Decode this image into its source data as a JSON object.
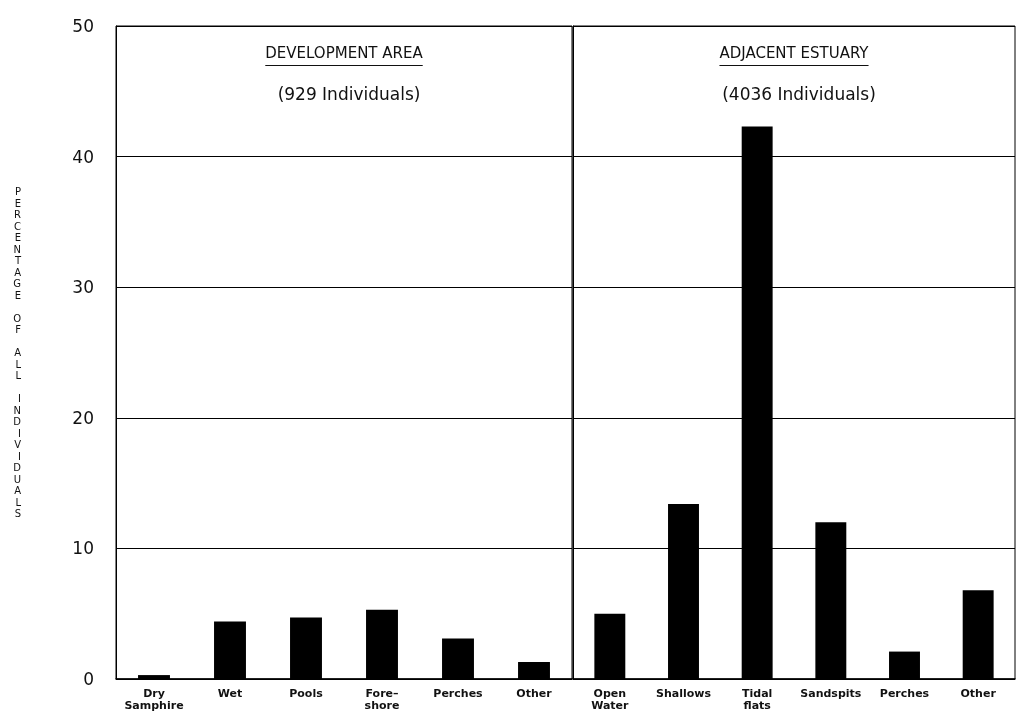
{
  "chart_data": [
    {
      "type": "bar",
      "title": "DEVELOPMENT AREA",
      "subtitle": "(929 Individuals)",
      "ylabel": "PERCENTAGE OF ALL INDIVIDUALS",
      "categories": [
        "Dry\nSamphire",
        "Wet",
        "Pools",
        "Fore–\nshore",
        "Perches",
        "Other"
      ],
      "values": [
        0.3,
        4.4,
        4.7,
        5.3,
        3.1,
        1.3
      ],
      "color": "#000000",
      "ylim": [
        0,
        50
      ],
      "yticks": [
        0,
        10,
        20,
        30,
        40,
        50
      ],
      "grid": "y"
    },
    {
      "type": "bar",
      "title": "ADJACENT ESTUARY",
      "subtitle": "(4036 Individuals)",
      "categories": [
        "Open\nWater",
        "Shallows",
        "Tidal\nflats",
        "Sandspits",
        "Perches",
        "Other"
      ],
      "values": [
        5.0,
        13.4,
        42.3,
        12.0,
        2.1,
        6.8
      ],
      "color": "#000000",
      "ylim": [
        0,
        50
      ],
      "yticks": [
        0,
        10,
        20,
        30,
        40,
        50
      ],
      "grid": "y",
      "tick_labels": "x"
    }
  ]
}
